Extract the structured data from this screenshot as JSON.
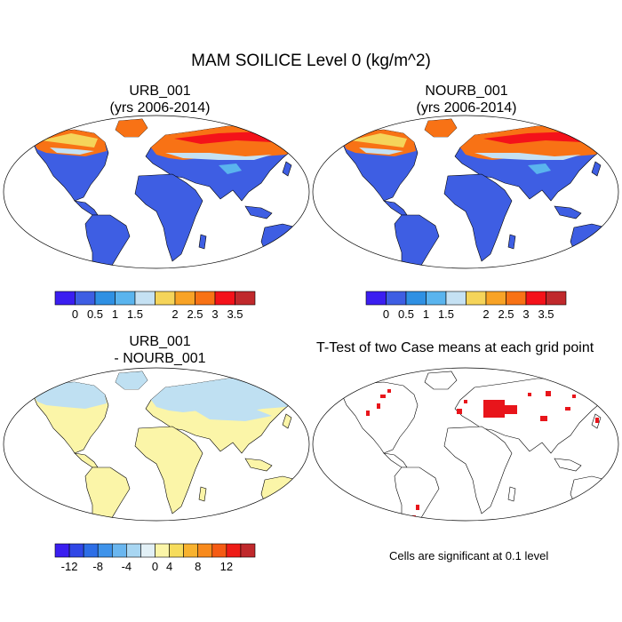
{
  "title": "MAM SOILICE Level 0 (kg/m^2)",
  "panels": [
    {
      "id": "urb",
      "title_line1": "URB_001",
      "title_line2": "(yrs 2006-2014)"
    },
    {
      "id": "nourb",
      "title_line1": "NOURB_001",
      "title_line2": "(yrs 2006-2014)"
    },
    {
      "id": "diff",
      "title_line1": "URB_001",
      "title_line2": "- NOURB_001"
    },
    {
      "id": "ttest",
      "title_line1": "T-Test of two Case means at each grid point"
    }
  ],
  "note": "Cells are significant at 0.1 level",
  "colors": {
    "ocean_bg": "#ffffff",
    "sig_red": "#e8151b",
    "coast": "#000000",
    "diff_land": "#fbf5a8",
    "diff_north": "#bfe0f2"
  },
  "chart_data": [
    {
      "type": "heatmap",
      "panel": "urb",
      "legend": {
        "colors": [
          "#3b1ef0",
          "#3e5ee3",
          "#2f90e3",
          "#5ab4ee",
          "#c5e1f3",
          "#f5d45a",
          "#f8a326",
          "#f87215",
          "#f4121a",
          "#c0292c"
        ],
        "tick_labels": [
          "0",
          "0.5",
          "1",
          "1.5",
          "2",
          "2.5",
          "3",
          "3.5"
        ]
      }
    },
    {
      "type": "heatmap",
      "panel": "nourb",
      "legend": {
        "colors": [
          "#3b1ef0",
          "#3e5ee3",
          "#2f90e3",
          "#5ab4ee",
          "#c5e1f3",
          "#f5d45a",
          "#f8a326",
          "#f87215",
          "#f4121a",
          "#c0292c"
        ],
        "tick_labels": [
          "0",
          "0.5",
          "1",
          "1.5",
          "2",
          "2.5",
          "3",
          "3.5"
        ]
      }
    },
    {
      "type": "heatmap",
      "panel": "diff",
      "legend": {
        "colors": [
          "#3a1ef0",
          "#3047e6",
          "#2d6ee6",
          "#3f93ea",
          "#6ab6ef",
          "#a8d6f2",
          "#e2f0f6",
          "#fbf5a8",
          "#f6dc5c",
          "#f8b22e",
          "#f88a1c",
          "#f55b14",
          "#ee1c17",
          "#c0292c"
        ],
        "tick_labels": [
          "-12",
          "-8",
          "-4",
          "0",
          "4",
          "8",
          "12"
        ]
      }
    },
    {
      "type": "heatmap",
      "panel": "ttest",
      "significance_level": 0.1
    }
  ]
}
